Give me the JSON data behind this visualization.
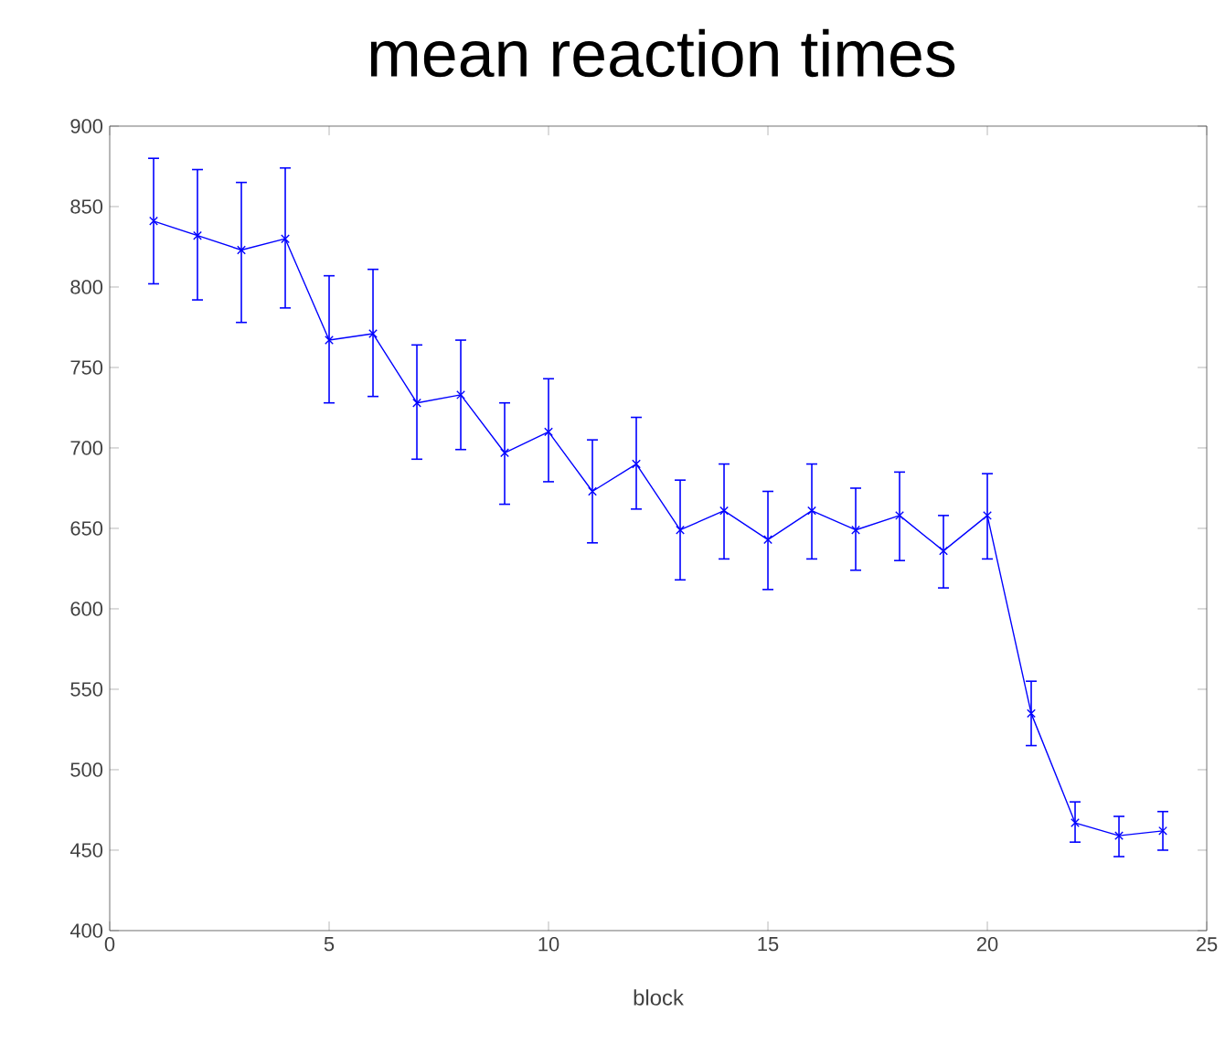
{
  "chart_data": {
    "type": "line",
    "title": "mean reaction times",
    "xlabel": "block",
    "x": [
      1,
      2,
      3,
      4,
      5,
      6,
      7,
      8,
      9,
      10,
      11,
      12,
      13,
      14,
      15,
      16,
      17,
      18,
      19,
      20,
      21,
      22,
      23,
      24
    ],
    "values": [
      841,
      832,
      823,
      830,
      767,
      771,
      728,
      733,
      697,
      710,
      673,
      690,
      649,
      661,
      643,
      661,
      649,
      658,
      636,
      658,
      535,
      467,
      459,
      462
    ],
    "errors": [
      [
        802,
        880
      ],
      [
        792,
        873
      ],
      [
        778,
        865
      ],
      [
        787,
        874
      ],
      [
        728,
        807
      ],
      [
        732,
        811
      ],
      [
        693,
        764
      ],
      [
        699,
        767
      ],
      [
        665,
        728
      ],
      [
        679,
        743
      ],
      [
        641,
        705
      ],
      [
        662,
        719
      ],
      [
        618,
        680
      ],
      [
        631,
        690
      ],
      [
        612,
        673
      ],
      [
        631,
        690
      ],
      [
        624,
        675
      ],
      [
        630,
        685
      ],
      [
        613,
        658
      ],
      [
        631,
        684
      ],
      [
        515,
        555
      ],
      [
        455,
        480
      ],
      [
        446,
        471
      ],
      [
        450,
        474
      ]
    ],
    "color": "#0000ff",
    "marker": "cross",
    "line_style": "solid",
    "grid": false,
    "xlim": [
      0,
      25
    ],
    "xticks": [
      0,
      5,
      10,
      15,
      20,
      25
    ],
    "ylim": [
      400,
      900
    ],
    "yticks": [
      400,
      450,
      500,
      550,
      600,
      650,
      700,
      750,
      800,
      850,
      900
    ]
  }
}
